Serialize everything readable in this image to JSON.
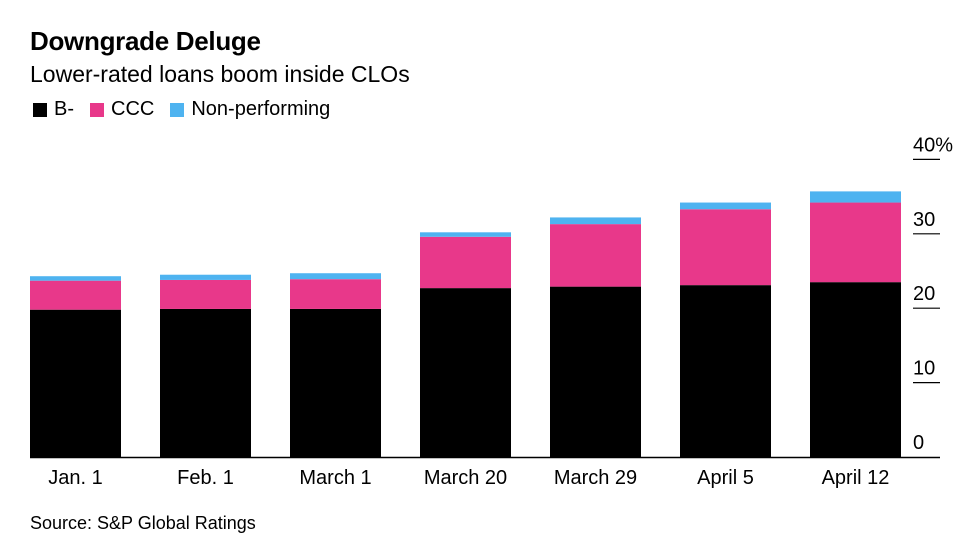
{
  "title": "Downgrade Deluge",
  "subtitle": "Lower-rated loans boom inside CLOs",
  "source": "Source: S&P Global Ratings",
  "legend": [
    {
      "label": "B-",
      "color": "#000000"
    },
    {
      "label": "CCC",
      "color": "#e8388a"
    },
    {
      "label": "Non-performing",
      "color": "#4eb3f0"
    }
  ],
  "chart_data": {
    "type": "bar",
    "stacked": true,
    "categories": [
      "Jan. 1",
      "Feb. 1",
      "March 1",
      "March 20",
      "March 29",
      "April 5",
      "April 12"
    ],
    "series": [
      {
        "name": "B-",
        "color": "#000000",
        "values": [
          19.8,
          19.9,
          19.9,
          22.7,
          22.9,
          23.1,
          23.5
        ]
      },
      {
        "name": "CCC",
        "color": "#e8388a",
        "values": [
          3.9,
          3.9,
          4.0,
          6.9,
          8.4,
          10.2,
          10.7
        ]
      },
      {
        "name": "Non-performing",
        "color": "#4eb3f0",
        "values": [
          0.6,
          0.7,
          0.8,
          0.6,
          0.9,
          0.9,
          1.5
        ]
      }
    ],
    "y_ticks": [
      "40%",
      "30",
      "20",
      "10",
      "0"
    ],
    "ylim": [
      0,
      40
    ],
    "y_axis_position": "right",
    "grid": false,
    "legend_position": "top-left"
  }
}
